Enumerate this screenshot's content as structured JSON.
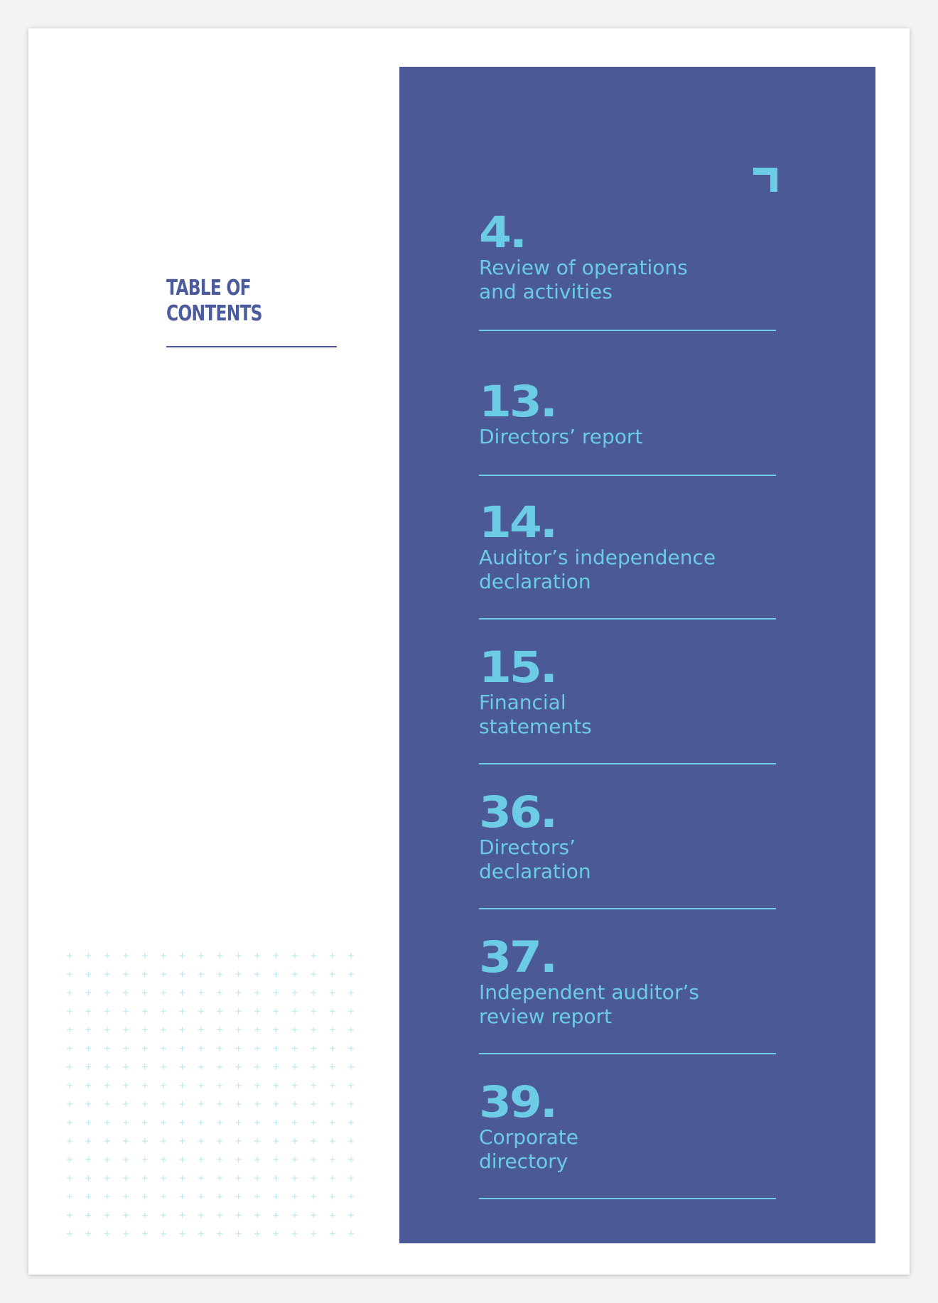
{
  "toc": {
    "heading_line1": "TABLE OF",
    "heading_line2": "CONTENTS"
  },
  "colors": {
    "panel": "#4b5a96",
    "accent": "#6ccce6",
    "heading": "#4b5b9b"
  },
  "icons": {
    "corner": "corner-bracket-icon",
    "grid": "plus-grid-pattern"
  },
  "entries": [
    {
      "page": "4.",
      "title": "Review of operations\nand activities"
    },
    {
      "page": "13.",
      "title": "Directors’ report"
    },
    {
      "page": "14.",
      "title": "Auditor’s independence\ndeclaration"
    },
    {
      "page": "15.",
      "title": "Financial\nstatements"
    },
    {
      "page": "36.",
      "title": "Directors’\ndeclaration"
    },
    {
      "page": "37.",
      "title": "Independent auditor’s\nreview report"
    },
    {
      "page": "39.",
      "title": "Corporate\ndirectory"
    }
  ]
}
